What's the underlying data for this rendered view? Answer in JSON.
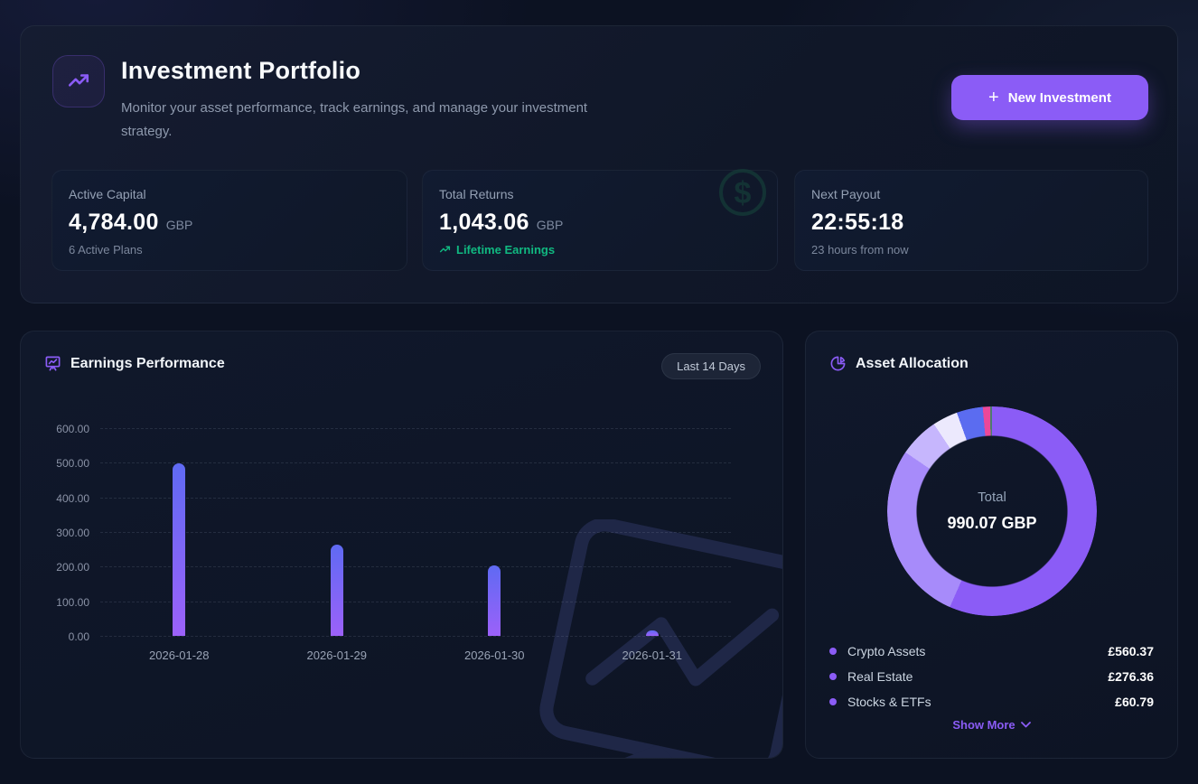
{
  "header": {
    "title": "Investment Portfolio",
    "subtitle": "Monitor your asset performance, track earnings, and manage your investment strategy.",
    "button": {
      "plus": "+",
      "label": "New Investment"
    }
  },
  "stats": [
    {
      "label": "Active Capital",
      "value": "4,784.00",
      "unit": "GBP",
      "sub": "6 Active Plans"
    },
    {
      "label": "Total Returns",
      "value": "1,043.06",
      "unit": "GBP",
      "sub": "Lifetime Earnings"
    },
    {
      "label": "Next Payout",
      "value": "22:55:18",
      "unit": "",
      "sub": "23 hours from now"
    }
  ],
  "earnings": {
    "title": "Earnings Performance",
    "range_label": "Last 14 Days"
  },
  "allocation": {
    "title": "Asset Allocation",
    "center_label": "Total",
    "center_value": "990.07 GBP",
    "show_more_label": "Show More",
    "legend": [
      {
        "name": "Crypto Assets",
        "value": "£560.37"
      },
      {
        "name": "Real Estate",
        "value": "£276.36"
      },
      {
        "name": "Stocks & ETFs",
        "value": "£60.79"
      }
    ]
  },
  "chart_data": [
    {
      "type": "bar",
      "title": "Earnings Performance",
      "categories": [
        "2026-01-28",
        "2026-01-29",
        "2026-01-30",
        "2026-01-31"
      ],
      "values": [
        498,
        264,
        203,
        15
      ],
      "y_ticks": [
        "600.00",
        "500.00",
        "400.00",
        "300.00",
        "200.00",
        "100.00",
        "0.00"
      ],
      "ylim": [
        0,
        600
      ],
      "grid": "dashed-horizontal",
      "bar_gradient": [
        "#5f6af3",
        "#9c61f9"
      ]
    },
    {
      "type": "pie",
      "title": "Asset Allocation",
      "total_label": "Total",
      "total_value": 990.07,
      "currency": "GBP",
      "segments": [
        {
          "label": "Crypto Assets",
          "value": 560.37,
          "color": "#8b5cf6",
          "in_legend": true
        },
        {
          "label": "Real Estate",
          "value": 276.36,
          "color": "#a78bfa",
          "in_legend": true
        },
        {
          "label": "Stocks & ETFs",
          "value": 60.79,
          "color": "#c6b6fd",
          "in_legend": true
        },
        {
          "label": "",
          "value": 38.5,
          "color": "#ece9fd",
          "in_legend": false,
          "estimated": true
        },
        {
          "label": "",
          "value": 40.0,
          "color": "#5b6cf0",
          "in_legend": false,
          "estimated": true
        },
        {
          "label": "",
          "value": 11.0,
          "color": "#ec4899",
          "in_legend": false,
          "estimated": true
        },
        {
          "label": "",
          "value": 3.05,
          "color": "#4d7c6f",
          "in_legend": false,
          "estimated": true
        }
      ],
      "legend_position": "bottom"
    }
  ],
  "colors": {
    "accent": "#8b5cf6",
    "positive": "#10b981",
    "background": "#0c1222",
    "text_muted": "#8e99ad"
  }
}
